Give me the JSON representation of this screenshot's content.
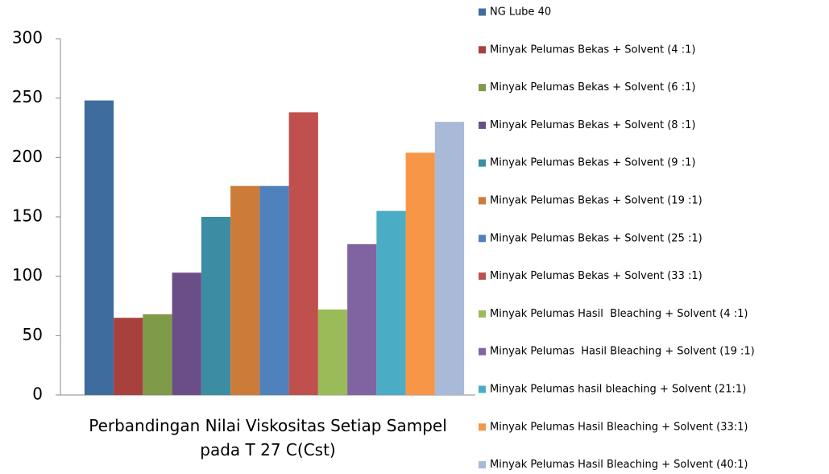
{
  "chart_data": {
    "type": "bar",
    "categories": [
      "Perbandingan Nilai Viskositas Setiap Sampel pada T 27 C(Cst)"
    ],
    "series": [
      {
        "name": "NG Lube 40",
        "color": "#3F6C9E",
        "values": [
          248
        ]
      },
      {
        "name": "Minyak Pelumas Bekas + Solvent (4 :1)",
        "color": "#A8403E",
        "values": [
          65
        ]
      },
      {
        "name": "Minyak Pelumas Bekas + Solvent (6 :1)",
        "color": "#7F9A48",
        "values": [
          68
        ]
      },
      {
        "name": "Minyak Pelumas Bekas + Solvent (8 :1)",
        "color": "#6B4E87",
        "values": [
          103
        ]
      },
      {
        "name": "Minyak Pelumas Bekas + Solvent (9 :1)",
        "color": "#3C8DA3",
        "values": [
          150
        ]
      },
      {
        "name": "Minyak Pelumas Bekas + Solvent (19 :1)",
        "color": "#CC7B38",
        "values": [
          176
        ]
      },
      {
        "name": "Minyak Pelumas Bekas + Solvent (25 :1)",
        "color": "#4F81BD",
        "values": [
          176
        ]
      },
      {
        "name": "Minyak Pelumas Bekas + Solvent (33 :1)",
        "color": "#C0504D",
        "values": [
          238
        ]
      },
      {
        "name": "Minyak Pelumas Hasil  Bleaching + Solvent (4 :1)",
        "color": "#9BBB59",
        "values": [
          72
        ]
      },
      {
        "name": "Minyak Pelumas  Hasil Bleaching + Solvent (19 :1)",
        "color": "#8064A2",
        "values": [
          127
        ]
      },
      {
        "name": "Minyak Pelumas hasil bleaching + Solvent (21:1)",
        "color": "#4BACC6",
        "values": [
          155
        ]
      },
      {
        "name": "Minyak Pelumas Hasil Bleaching + Solvent (33:1)",
        "color": "#F79646",
        "values": [
          204
        ]
      },
      {
        "name": "Minyak Pelumas Hasil Bleaching + Solvent (40:1)",
        "color": "#A9B9D8",
        "values": [
          230
        ]
      }
    ],
    "ylim": [
      0,
      300
    ],
    "yticks": [
      0,
      50,
      100,
      150,
      200,
      250,
      300
    ],
    "grid": false,
    "legend": "right"
  }
}
